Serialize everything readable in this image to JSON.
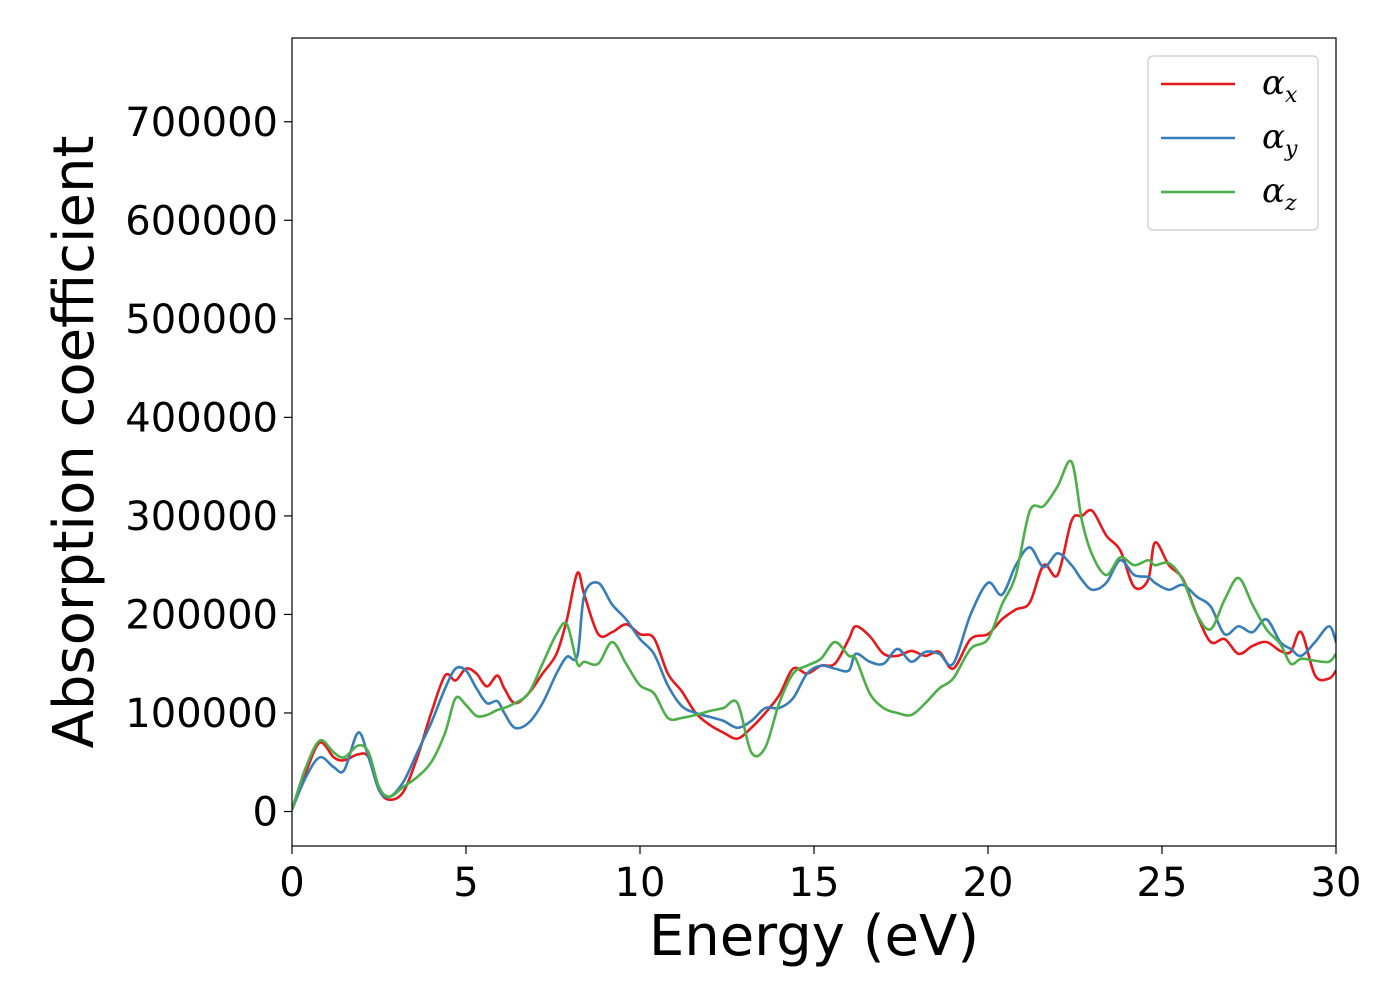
{
  "chart_data": {
    "type": "line",
    "title": "",
    "xlabel": "Energy (eV)",
    "ylabel": "Absorption coefficient",
    "xlim": [
      0,
      30
    ],
    "ylim": [
      -35000,
      785000
    ],
    "xticks": [
      0,
      5,
      10,
      15,
      20,
      25,
      30
    ],
    "yticks": [
      0,
      100000,
      200000,
      300000,
      400000,
      500000,
      600000,
      700000
    ],
    "grid": false,
    "legend_position": "top-right",
    "series": [
      {
        "name": "αx",
        "name_base": "α",
        "name_sub": "x",
        "color": "#e41a1c",
        "x": [
          0,
          0.4,
          0.8,
          1.2,
          1.5,
          1.9,
          2.2,
          2.5,
          2.8,
          3.2,
          3.6,
          4.0,
          4.4,
          4.7,
          5.0,
          5.3,
          5.6,
          5.9,
          6.1,
          6.4,
          6.8,
          7.2,
          7.6,
          7.9,
          8.2,
          8.4,
          8.8,
          9.2,
          9.6,
          10.0,
          10.4,
          10.8,
          11.2,
          11.6,
          12.0,
          12.4,
          12.8,
          13.2,
          13.6,
          14.0,
          14.4,
          14.8,
          15.2,
          15.6,
          16.0,
          16.2,
          16.6,
          17.0,
          17.4,
          17.8,
          18.2,
          18.6,
          19.0,
          19.5,
          20.0,
          20.4,
          20.8,
          21.2,
          21.6,
          22.0,
          22.4,
          22.7,
          23.0,
          23.4,
          23.8,
          24.2,
          24.6,
          24.8,
          25.2,
          25.6,
          26.0,
          26.4,
          26.8,
          27.2,
          27.6,
          28.0,
          28.4,
          28.7,
          29.0,
          29.4,
          29.8,
          30.0
        ],
        "y": [
          2000,
          40000,
          70000,
          55000,
          52000,
          58000,
          55000,
          22000,
          12000,
          20000,
          55000,
          100000,
          138000,
          133000,
          145000,
          140000,
          127000,
          138000,
          125000,
          110000,
          120000,
          140000,
          160000,
          195000,
          242000,
          220000,
          180000,
          182000,
          190000,
          180000,
          176000,
          140000,
          122000,
          100000,
          88000,
          80000,
          74000,
          85000,
          100000,
          118000,
          145000,
          140000,
          148000,
          150000,
          175000,
          188000,
          178000,
          160000,
          158000,
          163000,
          158000,
          162000,
          145000,
          175000,
          180000,
          195000,
          205000,
          212000,
          250000,
          240000,
          295000,
          300000,
          305000,
          280000,
          265000,
          228000,
          235000,
          273000,
          250000,
          236000,
          200000,
          172000,
          175000,
          160000,
          168000,
          172000,
          163000,
          162000,
          182000,
          138000,
          135000,
          143000
        ]
      },
      {
        "name": "αy",
        "name_base": "α",
        "name_sub": "y",
        "color": "#377eb8",
        "x": [
          0,
          0.4,
          0.8,
          1.2,
          1.5,
          1.9,
          2.2,
          2.5,
          2.8,
          3.2,
          3.6,
          4.0,
          4.4,
          4.7,
          5.0,
          5.3,
          5.6,
          5.9,
          6.1,
          6.4,
          6.8,
          7.2,
          7.6,
          7.9,
          8.2,
          8.4,
          8.8,
          9.2,
          9.6,
          10.0,
          10.4,
          10.8,
          11.2,
          11.6,
          12.0,
          12.4,
          12.8,
          13.2,
          13.6,
          14.0,
          14.4,
          14.8,
          15.2,
          15.6,
          16.0,
          16.2,
          16.6,
          17.0,
          17.4,
          17.8,
          18.2,
          18.6,
          19.0,
          19.5,
          20.0,
          20.4,
          20.8,
          21.2,
          21.6,
          22.0,
          22.4,
          22.7,
          23.0,
          23.4,
          23.8,
          24.2,
          24.6,
          24.8,
          25.2,
          25.6,
          26.0,
          26.4,
          26.8,
          27.2,
          27.6,
          28.0,
          28.4,
          28.7,
          29.0,
          29.4,
          29.8,
          30.0
        ],
        "y": [
          2000,
          35000,
          55000,
          45000,
          42000,
          80000,
          55000,
          22000,
          15000,
          30000,
          60000,
          90000,
          125000,
          145000,
          143000,
          125000,
          110000,
          112000,
          100000,
          85000,
          90000,
          110000,
          140000,
          157000,
          158000,
          220000,
          232000,
          210000,
          195000,
          175000,
          160000,
          128000,
          107000,
          100000,
          96000,
          92000,
          85000,
          92000,
          105000,
          105000,
          115000,
          140000,
          148000,
          145000,
          143000,
          160000,
          152000,
          150000,
          165000,
          152000,
          162000,
          160000,
          150000,
          200000,
          232000,
          220000,
          250000,
          268000,
          248000,
          262000,
          250000,
          235000,
          225000,
          232000,
          255000,
          240000,
          238000,
          232000,
          225000,
          230000,
          218000,
          208000,
          180000,
          188000,
          182000,
          195000,
          172000,
          165000,
          158000,
          172000,
          188000,
          172000
        ]
      },
      {
        "name": "αz",
        "name_base": "α",
        "name_sub": "z",
        "color": "#4daf4a",
        "x": [
          0,
          0.4,
          0.8,
          1.2,
          1.5,
          1.9,
          2.2,
          2.5,
          2.8,
          3.2,
          3.6,
          4.0,
          4.4,
          4.7,
          5.0,
          5.3,
          5.6,
          5.9,
          6.1,
          6.4,
          6.8,
          7.2,
          7.6,
          7.9,
          8.2,
          8.4,
          8.8,
          9.2,
          9.6,
          10.0,
          10.4,
          10.8,
          11.2,
          11.6,
          12.0,
          12.4,
          12.8,
          13.2,
          13.6,
          14.0,
          14.4,
          14.8,
          15.2,
          15.6,
          16.0,
          16.2,
          16.6,
          17.0,
          17.4,
          17.8,
          18.2,
          18.6,
          19.0,
          19.5,
          20.0,
          20.4,
          20.8,
          21.2,
          21.6,
          22.0,
          22.4,
          22.7,
          23.0,
          23.4,
          23.8,
          24.2,
          24.6,
          24.8,
          25.2,
          25.6,
          26.0,
          26.4,
          26.8,
          27.2,
          27.6,
          28.0,
          28.4,
          28.7,
          29.0,
          29.4,
          29.8,
          30.0
        ],
        "y": [
          2000,
          45000,
          72000,
          60000,
          55000,
          67000,
          60000,
          25000,
          15000,
          25000,
          35000,
          50000,
          80000,
          115000,
          108000,
          97000,
          98000,
          103000,
          105000,
          110000,
          120000,
          150000,
          180000,
          190000,
          150000,
          152000,
          150000,
          172000,
          150000,
          128000,
          120000,
          95000,
          95000,
          98000,
          102000,
          105000,
          110000,
          60000,
          65000,
          110000,
          140000,
          148000,
          155000,
          172000,
          158000,
          155000,
          120000,
          105000,
          100000,
          98000,
          110000,
          125000,
          135000,
          165000,
          175000,
          210000,
          240000,
          305000,
          310000,
          330000,
          355000,
          295000,
          260000,
          240000,
          258000,
          250000,
          255000,
          250000,
          252000,
          235000,
          200000,
          185000,
          215000,
          237000,
          210000,
          185000,
          170000,
          150000,
          155000,
          153000,
          152000,
          160000
        ]
      }
    ]
  }
}
